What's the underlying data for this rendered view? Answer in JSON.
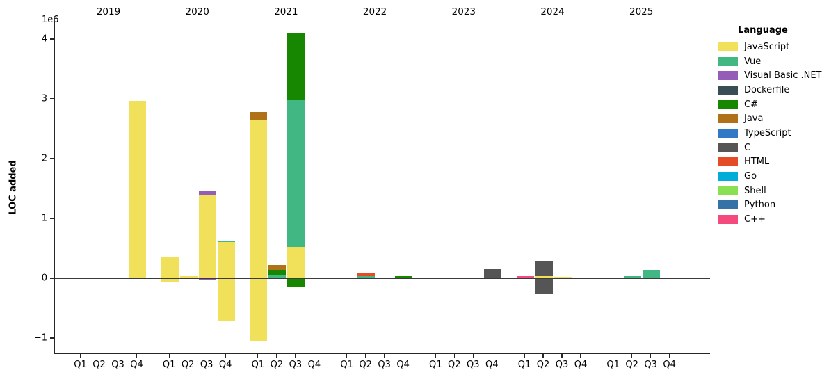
{
  "chart_data": {
    "type": "bar",
    "stacked": true,
    "title": "",
    "xlabel": "",
    "ylabel": "LOC added",
    "y_offset_text": "1e6",
    "ylim": [
      -1260000,
      4300000
    ],
    "y_tick_values": [
      4000000,
      3000000,
      2000000,
      1000000,
      0,
      -1000000
    ],
    "y_tick_labels": [
      "4",
      "3",
      "2",
      "1",
      "0",
      "−1"
    ],
    "grid": false,
    "years": [
      "2019",
      "2020",
      "2021",
      "2022",
      "2023",
      "2024",
      "2025"
    ],
    "quarters": [
      "Q1",
      "Q2",
      "Q3",
      "Q4"
    ],
    "legend": {
      "title": "Language",
      "position": "upper right",
      "entries": [
        {
          "label": "JavaScript",
          "color": "#f1e05a"
        },
        {
          "label": "Vue",
          "color": "#41b883"
        },
        {
          "label": "Visual Basic .NET",
          "color": "#945db7"
        },
        {
          "label": "Dockerfile",
          "color": "#384d54"
        },
        {
          "label": "C#",
          "color": "#178600"
        },
        {
          "label": "Java",
          "color": "#b07219"
        },
        {
          "label": "TypeScript",
          "color": "#3178c6"
        },
        {
          "label": "C",
          "color": "#555555"
        },
        {
          "label": "HTML",
          "color": "#e34c26"
        },
        {
          "label": "Go",
          "color": "#00ADD8"
        },
        {
          "label": "Shell",
          "color": "#89e051"
        },
        {
          "label": "Python",
          "color": "#3572A5"
        },
        {
          "label": "C++",
          "color": "#f34b7d"
        }
      ]
    },
    "bars": [
      {
        "year": "2019",
        "quarter": "Q4",
        "segments": [
          {
            "language": "JavaScript",
            "value": 2960000
          }
        ]
      },
      {
        "year": "2020",
        "quarter": "Q1",
        "segments": [
          {
            "language": "JavaScript",
            "value": 360000
          },
          {
            "language": "JavaScript",
            "value": -70000
          }
        ]
      },
      {
        "year": "2020",
        "quarter": "Q2",
        "segments": [
          {
            "language": "JavaScript",
            "value": 30000
          }
        ]
      },
      {
        "year": "2020",
        "quarter": "Q3",
        "segments": [
          {
            "language": "JavaScript",
            "value": 1400000
          },
          {
            "language": "Visual Basic .NET",
            "value": 60000
          },
          {
            "language": "Visual Basic .NET",
            "value": -30000
          }
        ]
      },
      {
        "year": "2020",
        "quarter": "Q4",
        "segments": [
          {
            "language": "JavaScript",
            "value": 600000
          },
          {
            "language": "Vue",
            "value": 30000
          },
          {
            "language": "JavaScript",
            "value": -720000
          }
        ]
      },
      {
        "year": "2021",
        "quarter": "Q1",
        "segments": [
          {
            "language": "JavaScript",
            "value": 2650000
          },
          {
            "language": "Java",
            "value": 130000
          },
          {
            "language": "JavaScript",
            "value": -1050000
          }
        ]
      },
      {
        "year": "2021",
        "quarter": "Q2",
        "segments": [
          {
            "language": "Vue",
            "value": 50000
          },
          {
            "language": "C#",
            "value": 90000
          },
          {
            "language": "Java",
            "value": 80000
          }
        ]
      },
      {
        "year": "2021",
        "quarter": "Q3",
        "segments": [
          {
            "language": "JavaScript",
            "value": 520000
          },
          {
            "language": "Vue",
            "value": 2460000
          },
          {
            "language": "C#",
            "value": 1120000
          },
          {
            "language": "C#",
            "value": -150000
          }
        ]
      },
      {
        "year": "2022",
        "quarter": "Q2",
        "segments": [
          {
            "language": "Vue",
            "value": 40000
          },
          {
            "language": "HTML",
            "value": 45000
          }
        ]
      },
      {
        "year": "2022",
        "quarter": "Q4",
        "segments": [
          {
            "language": "C#",
            "value": 30000
          }
        ]
      },
      {
        "year": "2023",
        "quarter": "Q4",
        "segments": [
          {
            "language": "C",
            "value": 150000
          }
        ]
      },
      {
        "year": "2024",
        "quarter": "Q1",
        "segments": [
          {
            "language": "C++",
            "value": 40000
          }
        ]
      },
      {
        "year": "2024",
        "quarter": "Q2",
        "segments": [
          {
            "language": "JavaScript",
            "value": 40000
          },
          {
            "language": "C",
            "value": 250000
          },
          {
            "language": "C",
            "value": -260000
          }
        ]
      },
      {
        "year": "2024",
        "quarter": "Q3",
        "segments": [
          {
            "language": "JavaScript",
            "value": 25000
          }
        ]
      },
      {
        "year": "2025",
        "quarter": "Q2",
        "segments": [
          {
            "language": "Vue",
            "value": 35000
          }
        ]
      },
      {
        "year": "2025",
        "quarter": "Q3",
        "segments": [
          {
            "language": "Vue",
            "value": 140000
          }
        ]
      }
    ]
  }
}
